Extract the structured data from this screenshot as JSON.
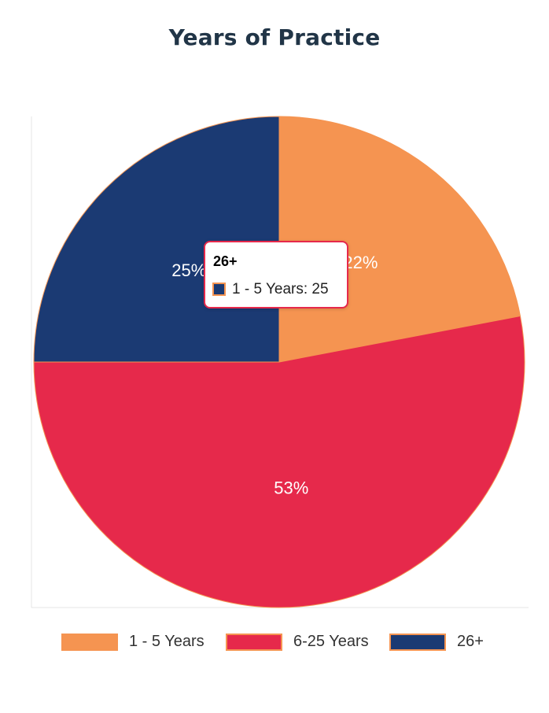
{
  "chart_data": {
    "type": "pie",
    "title": "Years of Practice",
    "categories": [
      "1 - 5 Years",
      "6-25 Years",
      "26+"
    ],
    "values": [
      22,
      53,
      25
    ],
    "value_labels": [
      "22%",
      "53%",
      "25%"
    ],
    "colors": [
      "#f59451",
      "#e6294b",
      "#1b3a73"
    ],
    "border_color": "#f59451",
    "legend_position": "bottom",
    "tooltip": {
      "title": "26+",
      "text": "1 - 5 Years: 25",
      "swatch_color": "#1b3a73",
      "border_color": "#e6294b"
    }
  }
}
